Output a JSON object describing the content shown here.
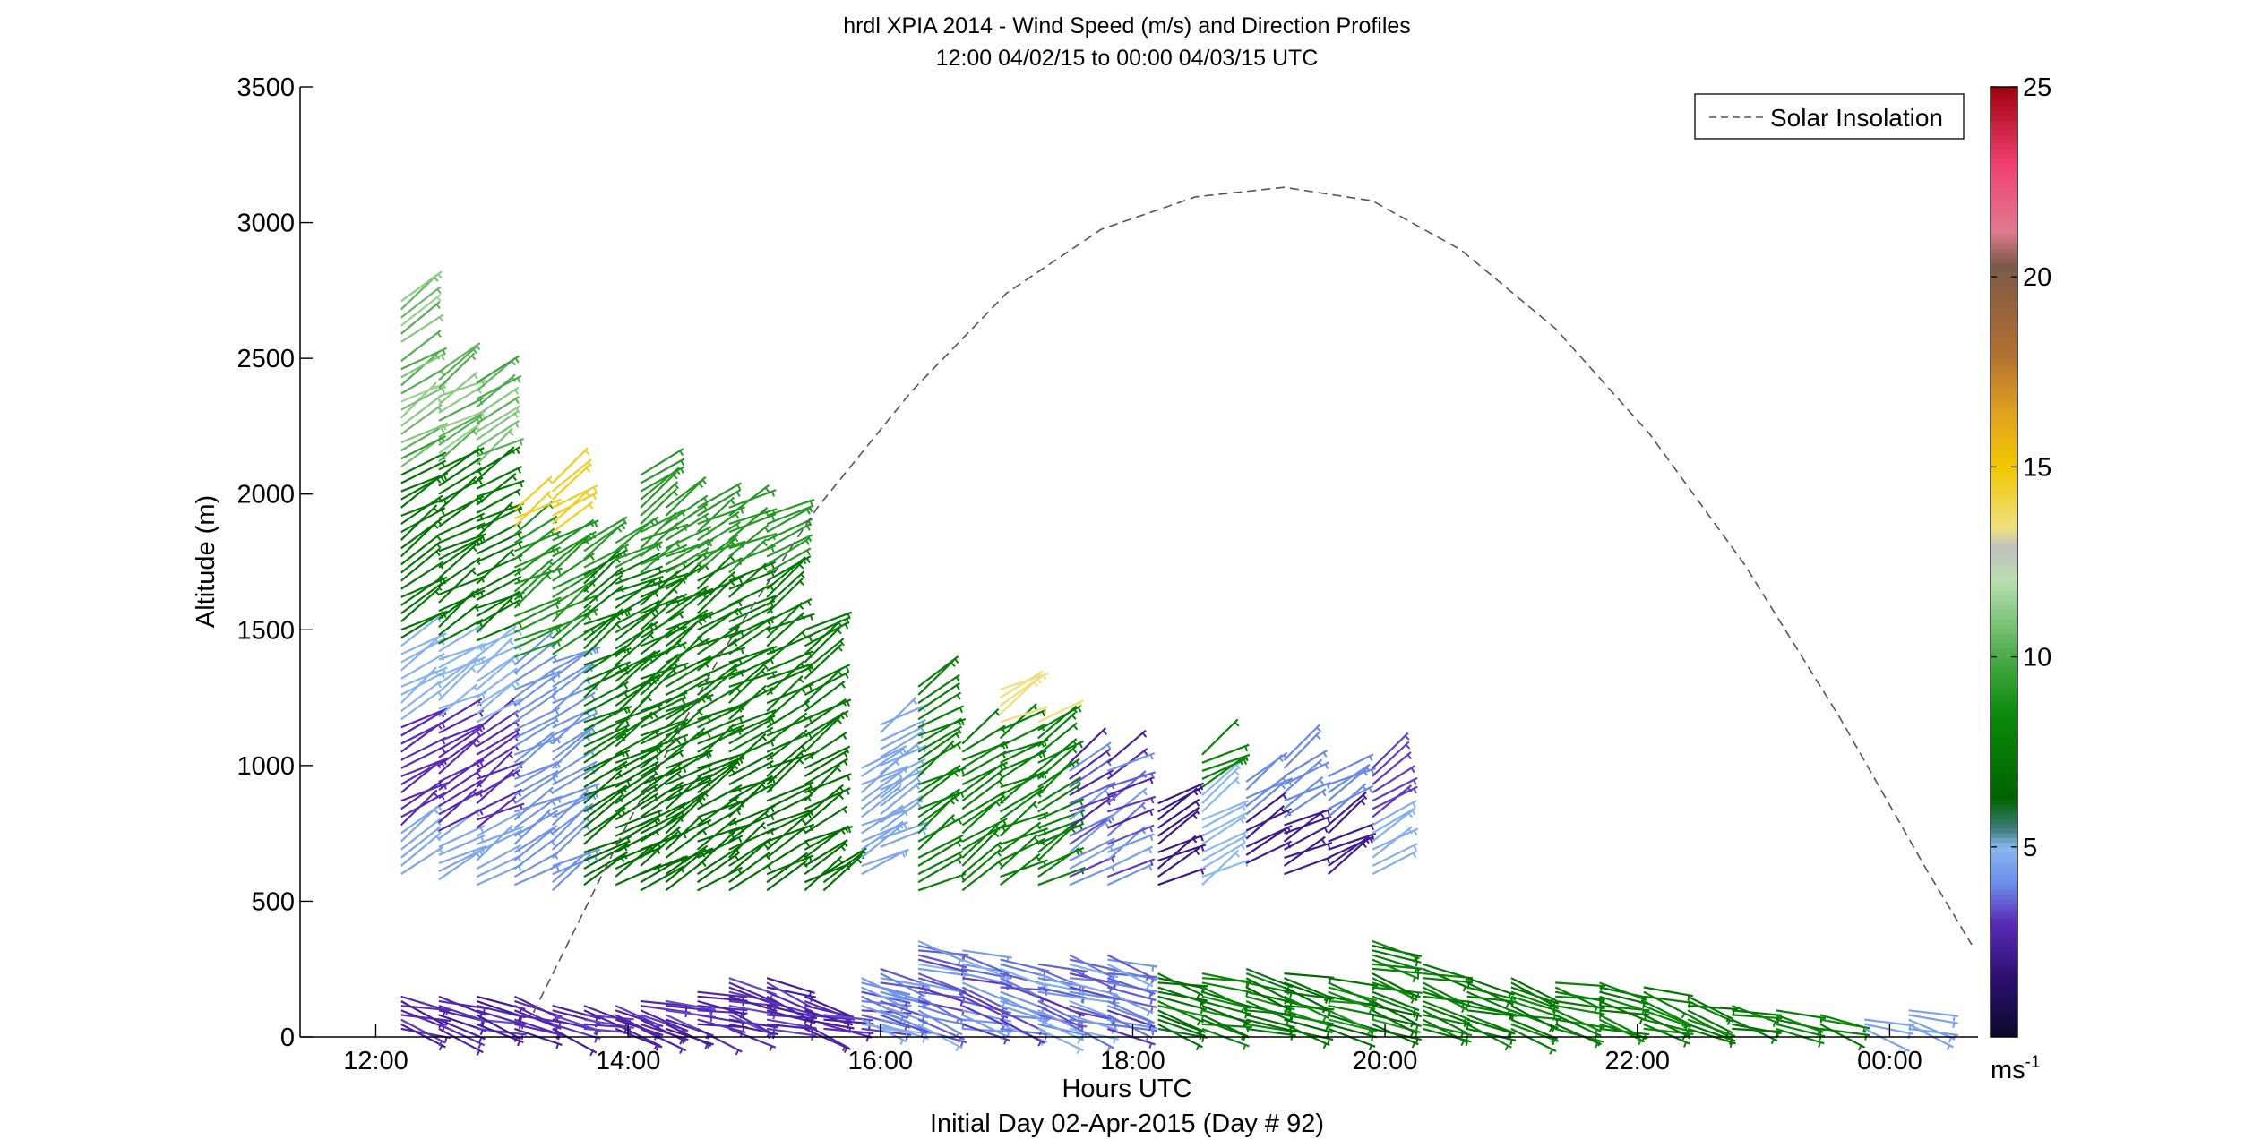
{
  "chart_data": {
    "type": "wind-barb-profile",
    "title": "hrdl XPIA 2014 - Wind Speed (m/s) and Direction Profiles",
    "subtitle": "12:00 04/02/15 to 00:00 04/03/15  UTC",
    "xlabel": "Hours UTC",
    "xlabel_note": "Initial Day 02-Apr-2015 (Day # 92)",
    "ylabel": "Altitude (m)",
    "xlim_hours": [
      11.4,
      24.7
    ],
    "ylim": [
      0,
      3500
    ],
    "x_ticks": [
      {
        "h": 12,
        "label": "12:00"
      },
      {
        "h": 14,
        "label": "14:00"
      },
      {
        "h": 16,
        "label": "16:00"
      },
      {
        "h": 18,
        "label": "18:00"
      },
      {
        "h": 20,
        "label": "20:00"
      },
      {
        "h": 22,
        "label": "22:00"
      },
      {
        "h": 24,
        "label": "00:00"
      }
    ],
    "y_ticks": [
      {
        "v": 0,
        "label": "0"
      },
      {
        "v": 500,
        "label": "500"
      },
      {
        "v": 1000,
        "label": "1000"
      },
      {
        "v": 1500,
        "label": "1500"
      },
      {
        "v": 2000,
        "label": "2000"
      },
      {
        "v": 2500,
        "label": "2500"
      },
      {
        "v": 3000,
        "label": "3000"
      },
      {
        "v": 3500,
        "label": "3500"
      }
    ],
    "legend": {
      "label": "Solar Insolation",
      "position": "top-right"
    },
    "colorbar": {
      "min": 0,
      "max": 25,
      "unit_label": "ms",
      "unit_exp": "-1",
      "ticks": [
        {
          "v": 5,
          "label": "5"
        },
        {
          "v": 10,
          "label": "10"
        },
        {
          "v": 15,
          "label": "15"
        },
        {
          "v": 20,
          "label": "20"
        },
        {
          "v": 25,
          "label": "25"
        }
      ],
      "stops": [
        [
          0,
          "#0a0a2a"
        ],
        [
          1.5,
          "#2a0f6e"
        ],
        [
          3,
          "#5a2ab8"
        ],
        [
          4,
          "#6a8ae8"
        ],
        [
          5,
          "#8ab8f0"
        ],
        [
          5.5,
          "#3a7a78"
        ],
        [
          6.3,
          "#006400"
        ],
        [
          8.5,
          "#0a8a0a"
        ],
        [
          10,
          "#4aaa4a"
        ],
        [
          12,
          "#b8e0b0"
        ],
        [
          12.9,
          "#c0c0c0"
        ],
        [
          13.4,
          "#f0e080"
        ],
        [
          15,
          "#f0c800"
        ],
        [
          16.5,
          "#e0a020"
        ],
        [
          18,
          "#b07030"
        ],
        [
          19.5,
          "#906040"
        ],
        [
          20.3,
          "#7a5a48"
        ],
        [
          21.2,
          "#e07a90"
        ],
        [
          23,
          "#f04070"
        ],
        [
          25,
          "#a00010"
        ]
      ]
    },
    "solar_insolation_curve": {
      "x_hours": [
        13.25,
        14.0,
        14.75,
        15.5,
        16.25,
        17.0,
        17.75,
        18.5,
        19.2,
        19.9,
        20.6,
        21.35,
        22.1,
        22.85,
        23.6,
        24.3,
        24.65
      ],
      "y_altitude": [
        90,
        790,
        1420,
        1950,
        2380,
        2740,
        2975,
        3095,
        3130,
        3080,
        2900,
        2610,
        2220,
        1740,
        1180,
        610,
        340
      ]
    },
    "profiles": [
      {
        "h": 12.2,
        "upper": [
          [
            600,
            1620
          ],
          [
            1650,
            2500
          ],
          [
            2560,
            2730
          ]
        ],
        "lower": [
          30,
          150
        ]
      },
      {
        "h": 12.5,
        "upper": [
          [
            580,
            1700
          ],
          [
            1730,
            2450
          ]
        ],
        "lower": [
          30,
          165
        ]
      },
      {
        "h": 12.8,
        "upper": [
          [
            560,
            1700
          ],
          [
            1750,
            2410
          ]
        ],
        "lower": [
          30,
          160
        ]
      },
      {
        "h": 13.1,
        "upper": [
          [
            560,
            1960
          ]
        ],
        "lower": [
          30,
          150
        ]
      },
      {
        "h": 13.4,
        "upper": [
          [
            540,
            2040
          ]
        ],
        "lower": [
          30,
          130
        ]
      },
      {
        "h": 13.65,
        "upper": [
          [
            560,
            1820
          ]
        ],
        "lower": [
          30,
          120
        ]
      },
      {
        "h": 13.9,
        "upper": [
          [
            560,
            1840
          ]
        ],
        "lower": [
          30,
          125
        ]
      },
      {
        "h": 14.1,
        "upper": [
          [
            540,
            2090
          ]
        ],
        "lower": [
          30,
          140
        ]
      },
      {
        "h": 14.3,
        "upper": [
          [
            540,
            1950
          ]
        ],
        "lower": [
          30,
          145
        ]
      },
      {
        "h": 14.55,
        "upper": [
          [
            540,
            1960
          ]
        ],
        "lower": [
          30,
          180
        ]
      },
      {
        "h": 14.8,
        "upper": [
          [
            540,
            1950
          ]
        ],
        "lower": [
          30,
          230
        ]
      },
      {
        "h": 15.1,
        "upper": [
          [
            540,
            1920
          ]
        ],
        "lower": [
          30,
          230
        ]
      },
      {
        "h": 15.4,
        "upper": [
          [
            540,
            1500
          ]
        ],
        "lower": [
          30,
          150
        ]
      },
      {
        "h": 15.55,
        "upper": [
          [
            540,
            620
          ]
        ],
        "lower": [
          30,
          90
        ]
      },
      {
        "h": 15.85,
        "upper": [
          [
            600,
            1000
          ]
        ],
        "lower": [
          30,
          230
        ]
      },
      {
        "h": 16.0,
        "upper": [
          [
            700,
            1170
          ]
        ],
        "lower": [
          30,
          260
        ]
      },
      {
        "h": 16.3,
        "upper": [
          [
            540,
            1290
          ]
        ],
        "lower": [
          30,
          360
        ]
      },
      {
        "h": 16.65,
        "upper": [
          [
            540,
            1100
          ]
        ],
        "lower": [
          30,
          330
        ]
      },
      {
        "h": 16.95,
        "upper": [
          [
            560,
            1280
          ]
        ],
        "lower": [
          30,
          290
        ]
      },
      {
        "h": 17.25,
        "upper": [
          [
            560,
            1170
          ]
        ],
        "lower": [
          30,
          280
        ]
      },
      {
        "h": 17.5,
        "upper": [
          [
            560,
            1010
          ]
        ],
        "lower": [
          30,
          310
        ]
      },
      {
        "h": 17.8,
        "upper": [
          [
            560,
            1010
          ]
        ],
        "lower": [
          30,
          310
        ]
      },
      {
        "h": 18.2,
        "upper": [
          [
            560,
            880
          ]
        ],
        "lower": [
          30,
          250
        ]
      },
      {
        "h": 18.55,
        "upper": [
          [
            560,
            1060
          ]
        ],
        "lower": [
          30,
          250
        ]
      },
      {
        "h": 18.9,
        "upper": [
          [
            640,
            960
          ]
        ],
        "lower": [
          30,
          260
        ]
      },
      {
        "h": 19.2,
        "upper": [
          [
            600,
            1020
          ]
        ],
        "lower": [
          30,
          250
        ]
      },
      {
        "h": 19.55,
        "upper": [
          [
            600,
            980
          ]
        ],
        "lower": [
          30,
          230
        ]
      },
      {
        "h": 19.9,
        "upper": [
          [
            600,
            1010
          ]
        ],
        "lower": [
          30,
          360
        ]
      },
      {
        "h": 20.3,
        "upper": [],
        "lower": [
          30,
          270
        ]
      },
      {
        "h": 20.65,
        "upper": [],
        "lower": [
          30,
          230
        ]
      },
      {
        "h": 21.0,
        "upper": [],
        "lower": [
          30,
          220
        ]
      },
      {
        "h": 21.35,
        "upper": [],
        "lower": [
          30,
          210
        ]
      },
      {
        "h": 21.7,
        "upper": [],
        "lower": [
          30,
          200
        ]
      },
      {
        "h": 22.05,
        "upper": [],
        "lower": [
          30,
          190
        ]
      },
      {
        "h": 22.4,
        "upper": [],
        "lower": [
          30,
          160
        ]
      },
      {
        "h": 22.75,
        "upper": [],
        "lower": [
          30,
          120
        ]
      },
      {
        "h": 23.1,
        "upper": [],
        "lower": [
          30,
          100
        ]
      },
      {
        "h": 23.45,
        "upper": [],
        "lower": [
          30,
          90
        ]
      },
      {
        "h": 23.8,
        "upper": [],
        "lower": [
          30,
          80
        ]
      },
      {
        "h": 24.15,
        "upper": [],
        "lower": [
          30,
          100
        ]
      }
    ]
  }
}
